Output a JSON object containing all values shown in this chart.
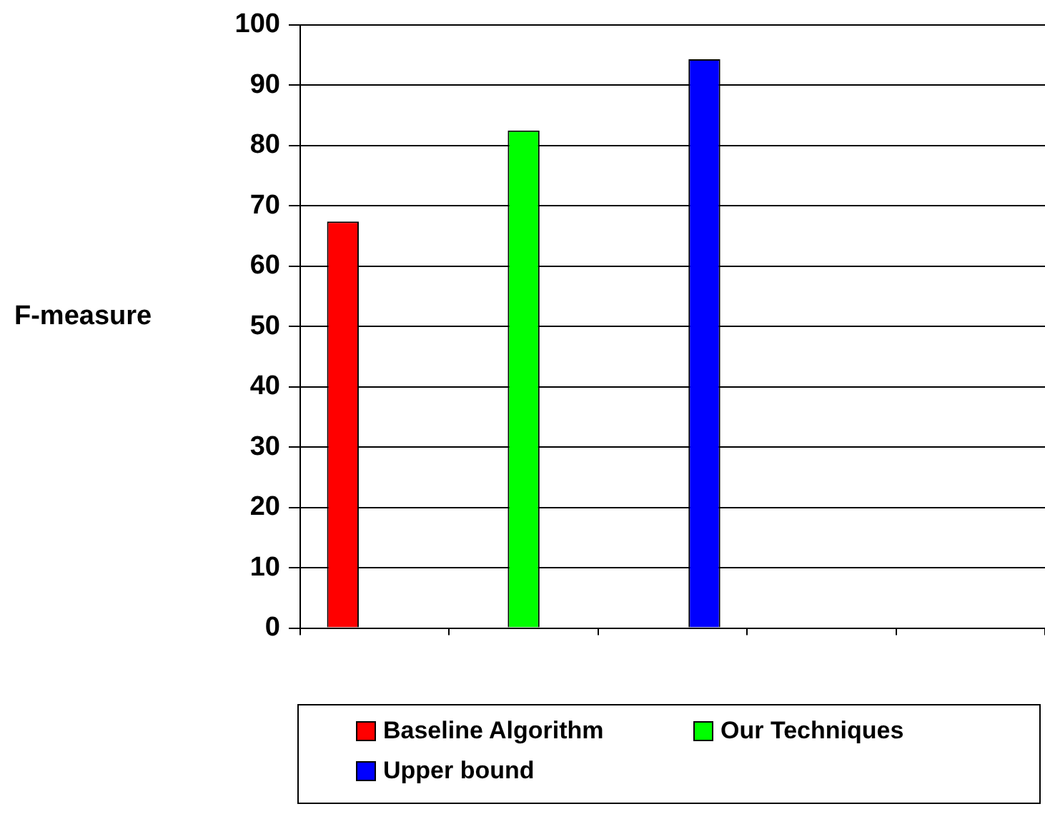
{
  "chart_data": {
    "type": "bar",
    "ylabel": "F-measure",
    "categories": [
      null,
      null,
      null,
      null,
      null
    ],
    "series": [
      {
        "name": "Baseline Algorithm",
        "color": "#ff0000",
        "values": [
          67.4,
          null,
          null,
          null,
          null
        ]
      },
      {
        "name": "Our Techniques",
        "color": "#00ff00",
        "values": [
          null,
          82.5,
          null,
          null,
          null
        ]
      },
      {
        "name": "Upper bound",
        "color": "#0000ff",
        "values": [
          null,
          null,
          94.3,
          null,
          null
        ]
      }
    ],
    "ylim": [
      0,
      100
    ],
    "yticks": [
      0,
      10,
      20,
      30,
      40,
      50,
      60,
      70,
      80,
      90,
      100
    ],
    "grid": "y",
    "legend": "bottom"
  }
}
